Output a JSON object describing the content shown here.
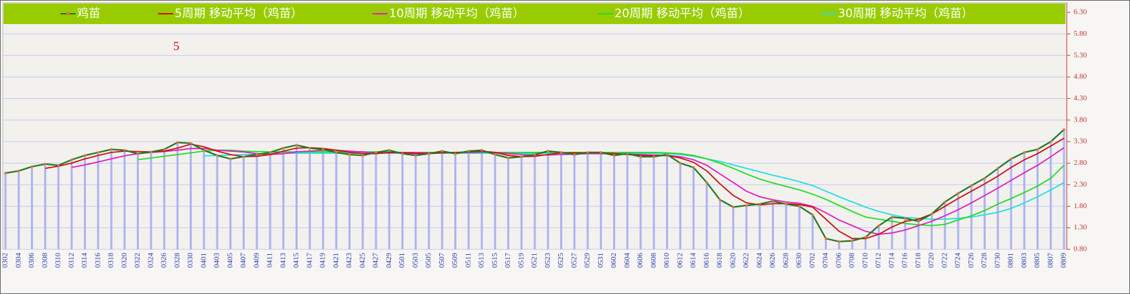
{
  "chart_data": {
    "type": "line",
    "annotation": "5",
    "categories": [
      "0302",
      "0304",
      "0306",
      "0308",
      "0310",
      "0312",
      "0314",
      "0316",
      "0318",
      "0320",
      "0322",
      "0324",
      "0326",
      "0328",
      "0330",
      "0401",
      "0403",
      "0405",
      "0407",
      "0409",
      "0411",
      "0413",
      "0415",
      "0417",
      "0419",
      "0421",
      "0423",
      "0425",
      "0427",
      "0429",
      "0501",
      "0503",
      "0505",
      "0507",
      "0509",
      "0511",
      "0513",
      "0515",
      "0517",
      "0519",
      "0521",
      "0523",
      "0525",
      "0527",
      "0529",
      "0531",
      "0602",
      "0604",
      "0606",
      "0608",
      "0610",
      "0612",
      "0614",
      "0616",
      "0618",
      "0620",
      "0622",
      "0624",
      "0626",
      "0628",
      "0630",
      "0702",
      "0704",
      "0706",
      "0708",
      "0710",
      "0712",
      "0714",
      "0716",
      "0718",
      "0720",
      "0722",
      "0724",
      "0726",
      "0728",
      "0730",
      "0801",
      "0803",
      "0805",
      "0807",
      "0809"
    ],
    "series": [
      {
        "name": "鸡苗",
        "color": "#1f7a1f",
        "marker_color": "#e8703a",
        "bar_color": "#aeb4f0",
        "values": [
          2.57,
          2.62,
          2.72,
          2.78,
          2.75,
          2.88,
          2.98,
          3.05,
          3.12,
          3.1,
          3.02,
          3.06,
          3.12,
          3.28,
          3.26,
          3.1,
          2.98,
          2.9,
          2.95,
          3.0,
          3.05,
          3.15,
          3.22,
          3.15,
          3.12,
          3.05,
          3.0,
          2.98,
          3.05,
          3.1,
          3.02,
          2.98,
          3.02,
          3.08,
          3.02,
          3.08,
          3.1,
          3.0,
          2.92,
          2.95,
          3.0,
          3.08,
          3.05,
          3.0,
          3.05,
          3.05,
          2.98,
          3.02,
          2.95,
          2.95,
          3.0,
          2.8,
          2.7,
          2.35,
          1.95,
          1.78,
          1.82,
          1.85,
          1.92,
          1.85,
          1.8,
          1.6,
          1.05,
          0.98,
          1.0,
          1.08,
          1.35,
          1.55,
          1.52,
          1.45,
          1.62,
          1.9,
          2.1,
          2.28,
          2.45,
          2.68,
          2.9,
          3.05,
          3.12,
          3.3,
          3.58
        ]
      },
      {
        "name": "5周期 移动平均（鸡苗）",
        "color": "#d01010",
        "values": [
          null,
          null,
          null,
          2.68,
          2.73,
          2.8,
          2.9,
          2.98,
          3.05,
          3.08,
          3.07,
          3.06,
          3.08,
          3.15,
          3.24,
          3.18,
          3.08,
          3.0,
          2.95,
          2.96,
          3.0,
          3.08,
          3.15,
          3.16,
          3.14,
          3.1,
          3.05,
          3.02,
          3.02,
          3.05,
          3.04,
          3.02,
          3.02,
          3.04,
          3.05,
          3.06,
          3.08,
          3.05,
          2.98,
          2.95,
          2.96,
          3.0,
          3.04,
          3.04,
          3.04,
          3.04,
          3.02,
          3.0,
          2.98,
          2.97,
          2.98,
          2.92,
          2.82,
          2.62,
          2.32,
          2.05,
          1.88,
          1.83,
          1.86,
          1.86,
          1.84,
          1.78,
          1.5,
          1.22,
          1.05,
          1.05,
          1.15,
          1.32,
          1.45,
          1.5,
          1.62,
          1.8,
          1.98,
          2.15,
          2.32,
          2.5,
          2.7,
          2.88,
          3.02,
          3.2,
          3.38
        ]
      },
      {
        "name": "10周期 移动平均（鸡苗）",
        "color": "#e020c0",
        "values": [
          null,
          null,
          null,
          null,
          null,
          2.7,
          2.76,
          2.83,
          2.9,
          2.97,
          3.02,
          3.05,
          3.07,
          3.1,
          3.14,
          3.14,
          3.1,
          3.08,
          3.06,
          3.02,
          3.0,
          3.02,
          3.06,
          3.08,
          3.1,
          3.1,
          3.08,
          3.06,
          3.04,
          3.04,
          3.05,
          3.05,
          3.04,
          3.04,
          3.05,
          3.05,
          3.06,
          3.05,
          3.02,
          3.0,
          2.99,
          2.99,
          3.0,
          3.01,
          3.02,
          3.02,
          3.02,
          3.01,
          3.0,
          2.99,
          2.98,
          2.95,
          2.88,
          2.75,
          2.55,
          2.35,
          2.15,
          2.02,
          1.95,
          1.9,
          1.87,
          1.8,
          1.65,
          1.48,
          1.35,
          1.22,
          1.15,
          1.18,
          1.25,
          1.35,
          1.45,
          1.58,
          1.72,
          1.88,
          2.05,
          2.22,
          2.4,
          2.58,
          2.75,
          2.95,
          3.16
        ]
      },
      {
        "name": "20周期 移动平均（鸡苗）",
        "color": "#22dd22",
        "values": [
          null,
          null,
          null,
          null,
          null,
          null,
          null,
          null,
          null,
          null,
          2.88,
          2.92,
          2.96,
          3.0,
          3.04,
          3.08,
          3.1,
          3.1,
          3.08,
          3.07,
          3.06,
          3.06,
          3.06,
          3.06,
          3.06,
          3.06,
          3.06,
          3.06,
          3.06,
          3.06,
          3.05,
          3.05,
          3.05,
          3.05,
          3.05,
          3.05,
          3.05,
          3.05,
          3.05,
          3.05,
          3.05,
          3.05,
          3.05,
          3.05,
          3.05,
          3.05,
          3.05,
          3.05,
          3.05,
          3.05,
          3.04,
          3.02,
          2.98,
          2.9,
          2.8,
          2.68,
          2.55,
          2.43,
          2.34,
          2.26,
          2.18,
          2.08,
          1.96,
          1.82,
          1.68,
          1.55,
          1.5,
          1.45,
          1.4,
          1.37,
          1.35,
          1.38,
          1.48,
          1.58,
          1.7,
          1.85,
          1.98,
          2.12,
          2.27,
          2.45,
          2.75
        ]
      },
      {
        "name": "30周期 移动平均（鸡苗）",
        "color": "#22e0e0",
        "values": [
          null,
          null,
          null,
          null,
          null,
          null,
          null,
          null,
          null,
          null,
          null,
          null,
          null,
          null,
          null,
          2.97,
          2.98,
          2.99,
          3.0,
          3.01,
          3.02,
          3.03,
          3.03,
          3.03,
          3.03,
          3.03,
          3.03,
          3.03,
          3.03,
          3.03,
          3.03,
          3.03,
          3.03,
          3.03,
          3.03,
          3.03,
          3.03,
          3.03,
          3.03,
          3.03,
          3.03,
          3.03,
          3.03,
          3.03,
          3.03,
          3.03,
          3.03,
          3.03,
          3.03,
          3.03,
          3.02,
          3.0,
          2.96,
          2.9,
          2.84,
          2.76,
          2.68,
          2.6,
          2.52,
          2.45,
          2.37,
          2.28,
          2.15,
          2.02,
          1.9,
          1.78,
          1.68,
          1.6,
          1.54,
          1.52,
          1.5,
          1.5,
          1.52,
          1.55,
          1.6,
          1.66,
          1.75,
          1.88,
          2.02,
          2.18,
          2.35
        ]
      }
    ],
    "ylim": [
      0.8,
      6.3
    ],
    "yticks": [
      {
        "value": 0.8,
        "label": "0.80"
      },
      {
        "value": 1.3,
        "label": "1.30"
      },
      {
        "value": 1.8,
        "label": "1.80"
      },
      {
        "value": 2.3,
        "label": "2.30"
      },
      {
        "value": 2.8,
        "label": "2.80"
      },
      {
        "value": 3.3,
        "label": "3.30"
      },
      {
        "value": 3.8,
        "label": "3.80"
      },
      {
        "value": 4.3,
        "label": "4.30"
      },
      {
        "value": 4.8,
        "label": "4.80"
      },
      {
        "value": 5.3,
        "label": "5.30"
      },
      {
        "value": 5.8,
        "label": "5.80"
      },
      {
        "value": 6.3,
        "label": "6.30"
      }
    ],
    "grid": true,
    "legend_color": "#99cc00"
  }
}
